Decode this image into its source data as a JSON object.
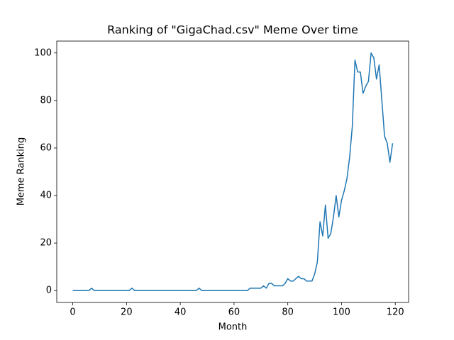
{
  "chart_data": {
    "type": "line",
    "title": "Ranking of \"GigaChad.csv\" Meme Over time",
    "x_label": "Month",
    "y_label": "Meme Ranking",
    "x": [
      0,
      1,
      2,
      3,
      4,
      5,
      6,
      7,
      8,
      9,
      10,
      11,
      12,
      13,
      14,
      15,
      16,
      17,
      18,
      19,
      20,
      21,
      22,
      23,
      24,
      25,
      26,
      27,
      28,
      29,
      30,
      31,
      32,
      33,
      34,
      35,
      36,
      37,
      38,
      39,
      40,
      41,
      42,
      43,
      44,
      45,
      46,
      47,
      48,
      49,
      50,
      51,
      52,
      53,
      54,
      55,
      56,
      57,
      58,
      59,
      60,
      61,
      62,
      63,
      64,
      65,
      66,
      67,
      68,
      69,
      70,
      71,
      72,
      73,
      74,
      75,
      76,
      77,
      78,
      79,
      80,
      81,
      82,
      83,
      84,
      85,
      86,
      87,
      88,
      89,
      90,
      91,
      92,
      93,
      94,
      95,
      96,
      97,
      98,
      99,
      100,
      101,
      102,
      103,
      104,
      105,
      106,
      107,
      108,
      109,
      110,
      111,
      112,
      113,
      114,
      115,
      116,
      117,
      118,
      119
    ],
    "series": [
      {
        "color": "#1f77b4",
        "values": [
          0,
          0,
          0,
          0,
          0,
          0,
          0,
          1,
          0,
          0,
          0,
          0,
          0,
          0,
          0,
          0,
          0,
          0,
          0,
          0,
          0,
          0,
          1,
          0,
          0,
          0,
          0,
          0,
          0,
          0,
          0,
          0,
          0,
          0,
          0,
          0,
          0,
          0,
          0,
          0,
          0,
          0,
          0,
          0,
          0,
          0,
          0,
          1,
          0,
          0,
          0,
          0,
          0,
          0,
          0,
          0,
          0,
          0,
          0,
          0,
          0,
          0,
          0,
          0,
          0,
          0,
          1,
          1,
          1,
          1,
          1,
          2,
          1,
          3,
          3,
          2,
          2,
          2,
          2,
          3,
          5,
          4,
          4,
          5,
          6,
          5,
          5,
          4,
          4,
          4,
          7,
          12,
          29,
          23,
          36,
          22,
          24,
          31,
          40,
          31,
          38,
          42,
          47,
          56,
          69,
          97,
          92,
          92,
          83,
          86,
          88,
          100,
          98,
          89,
          95,
          80,
          65,
          62,
          54,
          62
        ]
      }
    ],
    "xlim": [
      -5.95,
      124.95
    ],
    "ylim": [
      -5,
      105
    ],
    "xticks": [
      0,
      20,
      40,
      60,
      80,
      100,
      120
    ],
    "yticks": [
      0,
      20,
      40,
      60,
      80,
      100
    ]
  }
}
